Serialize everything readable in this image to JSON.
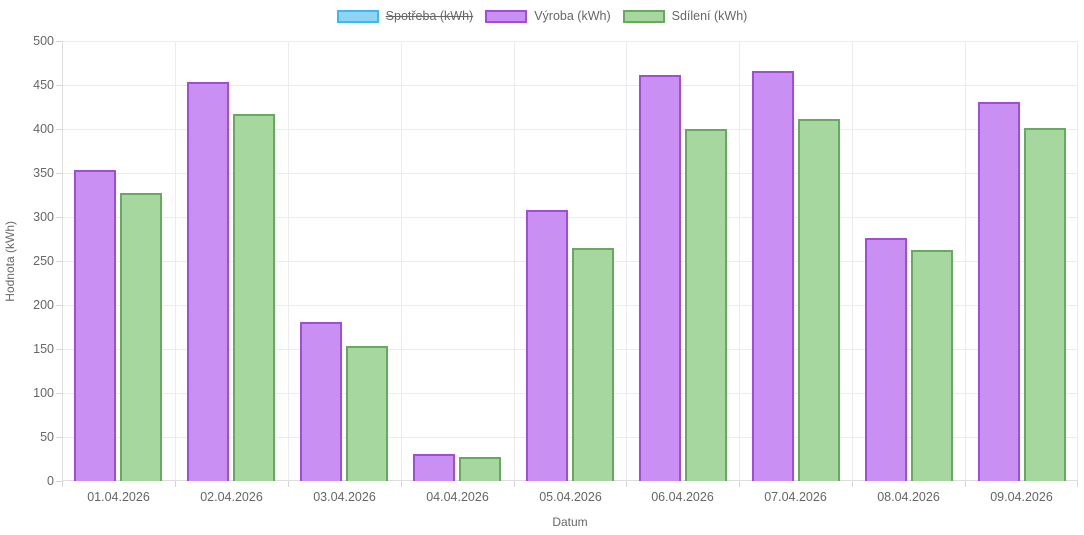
{
  "chart_data": {
    "type": "bar",
    "title": "",
    "xlabel": "Datum",
    "ylabel": "Hodnota (kWh)",
    "ylim": [
      0,
      500
    ],
    "ytick_step": 50,
    "grid": true,
    "legend_position": "top",
    "categories": [
      "01.04.2026",
      "02.04.2026",
      "03.04.2026",
      "04.04.2026",
      "05.04.2026",
      "06.04.2026",
      "07.04.2026",
      "08.04.2026",
      "09.04.2026"
    ],
    "series": [
      {
        "name": "Spotřeba (kWh)",
        "hidden": true,
        "fill_color": "#8FD4F5",
        "border_color": "#3CB9EE",
        "values": null
      },
      {
        "name": "Výroba (kWh)",
        "hidden": false,
        "fill_color": "#C98FF2",
        "border_color": "#A24DD8",
        "values": [
          353,
          453,
          181,
          31,
          308,
          461,
          466,
          276,
          431
        ]
      },
      {
        "name": "Sdílení (kWh)",
        "hidden": false,
        "fill_color": "#A6D79F",
        "border_color": "#67AA5F",
        "values": [
          327,
          417,
          153,
          27,
          265,
          400,
          411,
          262,
          401
        ]
      }
    ]
  }
}
